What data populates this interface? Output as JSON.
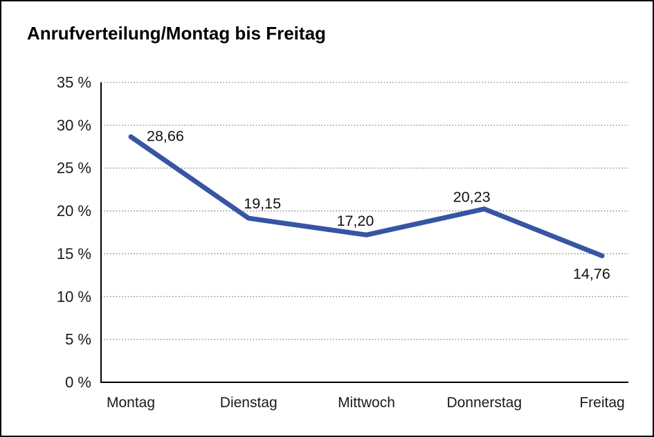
{
  "window": {
    "background": "#ffffff",
    "border_color": "#000000"
  },
  "chart_data": {
    "type": "line",
    "title": "Anrufverteilung/Montag bis Freitag",
    "categories": [
      "Montag",
      "Dienstag",
      "Mittwoch",
      "Donnerstag",
      "Freitag"
    ],
    "values": [
      28.66,
      19.15,
      17.2,
      20.23,
      14.76
    ],
    "value_labels": [
      "28,66",
      "19,15",
      "17,20",
      "20,23",
      "14,76"
    ],
    "xlabel": "",
    "ylabel": "",
    "ylim": [
      0,
      35
    ],
    "y_ticks": [
      35,
      30,
      25,
      20,
      15,
      10,
      5,
      0
    ],
    "y_tick_labels": [
      "35 %",
      "30 %",
      "25 %",
      "20 %",
      "15 %",
      "10 %",
      "5 %",
      "0 %"
    ],
    "grid": "horizontal-dotted",
    "legend": "none",
    "colors": {
      "series_line": "#3655a3",
      "gridline": "#7f7f7f",
      "axis": "#000000",
      "text": "#1a1a1a"
    }
  }
}
